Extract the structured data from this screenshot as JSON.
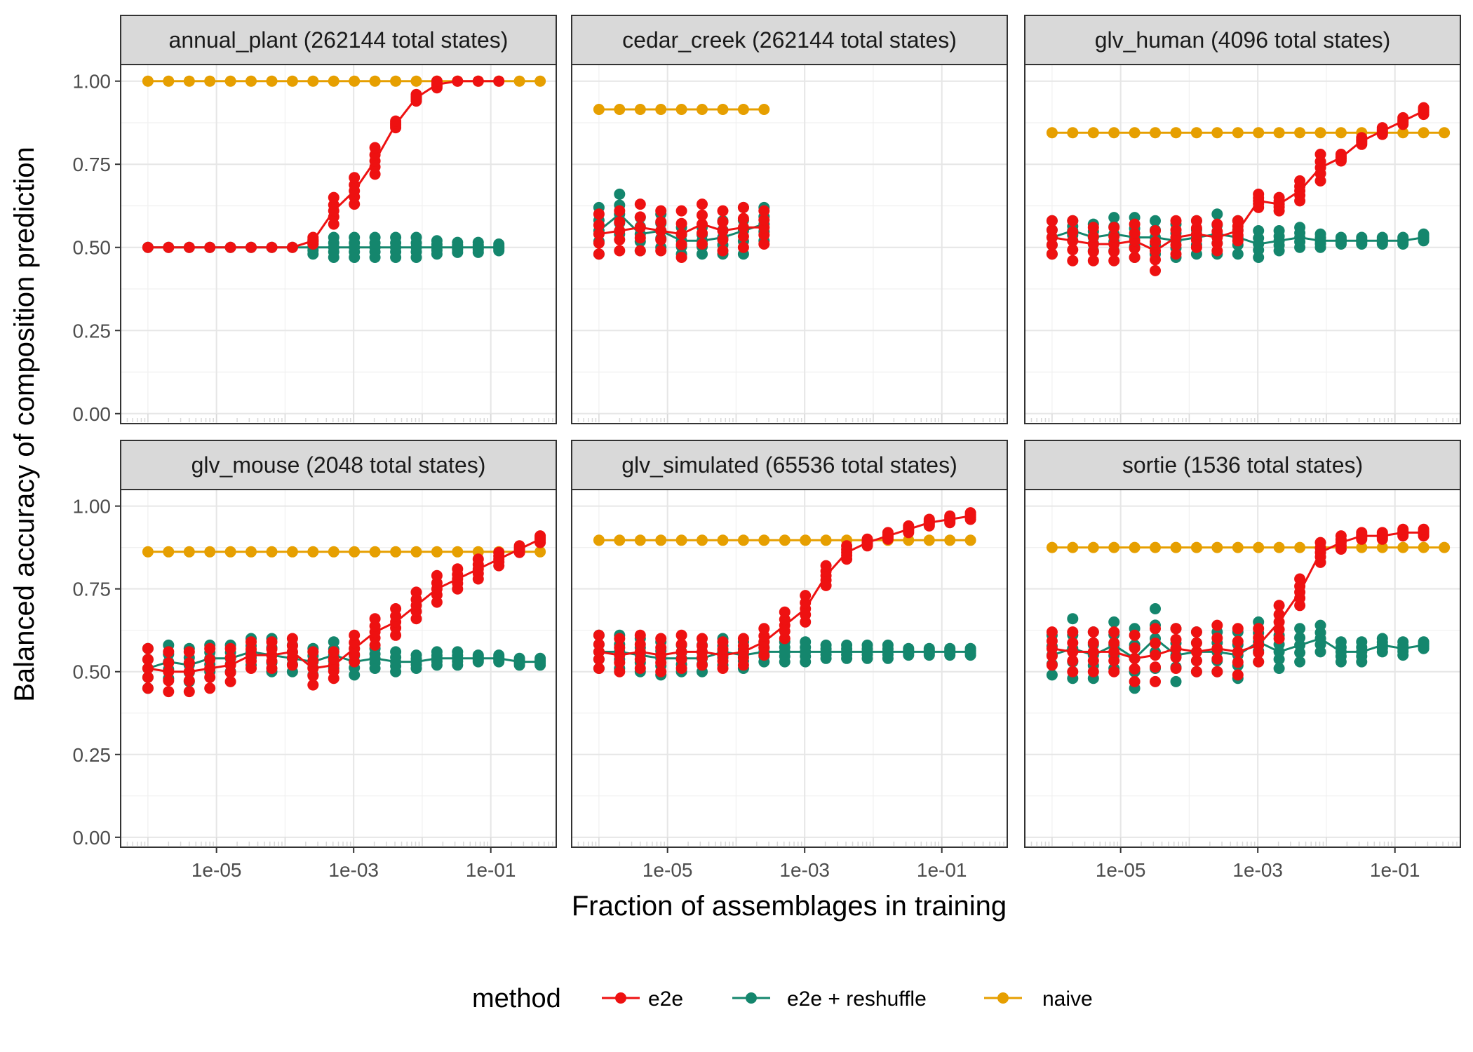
{
  "chart_data": {
    "type": "scatter",
    "xlabel": "Fraction of assemblages in training",
    "ylabel": "Balanced accuracy of composition prediction",
    "x_scale": "log10",
    "xlim": [
      4e-07,
      0.9
    ],
    "ylim": [
      -0.03,
      1.05
    ],
    "x_ticks": [
      1e-05,
      0.001,
      0.1
    ],
    "x_tick_labels": [
      "1e-05",
      "1e-03",
      "1e-01"
    ],
    "y_ticks": [
      0,
      0.25,
      0.5,
      0.75,
      1.0
    ],
    "y_tick_labels": [
      "0.00",
      "0.25",
      "0.50",
      "0.75",
      "1.00"
    ],
    "legend": {
      "title": "method",
      "position": "bottom",
      "entries": [
        {
          "label": "e2e",
          "color": "#ee1111"
        },
        {
          "label": "e2e + reshuffle",
          "color": "#14866d"
        },
        {
          "label": "naive",
          "color": "#e69f00"
        }
      ]
    },
    "x_grid": [
      1e-06,
      2e-06,
      4e-06,
      8e-06,
      1.6e-05,
      3.2e-05,
      6.4e-05,
      0.000128,
      0.000256,
      0.000512,
      0.001024,
      0.002048,
      0.004096,
      0.008192,
      0.016384,
      0.032768,
      0.065536,
      0.131072,
      0.262144,
      0.524288
    ],
    "panels": [
      {
        "title": "annual_plant (262144 total states)",
        "naive": [
          1,
          1,
          1,
          1,
          1,
          1,
          1,
          1,
          1,
          1,
          1,
          1,
          1,
          1,
          1,
          1,
          1,
          1,
          1,
          1
        ],
        "e2e_line": [
          0.5,
          0.5,
          0.5,
          0.5,
          0.5,
          0.5,
          0.5,
          0.5,
          0.52,
          0.61,
          0.67,
          0.76,
          0.87,
          0.95,
          0.99,
          1.0,
          1.0,
          1.0,
          null,
          null
        ],
        "reshuffle_line": [
          0.5,
          0.5,
          0.5,
          0.5,
          0.5,
          0.5,
          0.5,
          0.5,
          0.5,
          0.5,
          0.5,
          0.5,
          0.5,
          0.5,
          0.5,
          0.5,
          0.5,
          0.5,
          null,
          null
        ],
        "e2e_spread": [
          0,
          0,
          0,
          0,
          0,
          0,
          0,
          0,
          0.01,
          0.04,
          0.04,
          0.04,
          0.01,
          0.01,
          0.01,
          0,
          0,
          0,
          0,
          0
        ],
        "reshuffle_spread": [
          0,
          0,
          0,
          0,
          0,
          0,
          0,
          0,
          0.02,
          0.03,
          0.03,
          0.03,
          0.03,
          0.03,
          0.02,
          0.015,
          0.015,
          0.01,
          0,
          0
        ]
      },
      {
        "title": "cedar_creek (262144 total states)",
        "naive": [
          0.915,
          0.915,
          0.915,
          0.915,
          0.915,
          0.915,
          0.915,
          0.915,
          0.915,
          null,
          null,
          null,
          null,
          null,
          null,
          null,
          null,
          null,
          null,
          null
        ],
        "e2e_line": [
          0.54,
          0.55,
          0.56,
          0.55,
          0.54,
          0.57,
          0.55,
          0.56,
          0.56,
          null,
          null,
          null,
          null,
          null,
          null,
          null,
          null,
          null,
          null,
          null
        ],
        "reshuffle_line": [
          0.55,
          0.6,
          0.54,
          0.55,
          0.52,
          0.52,
          0.53,
          0.55,
          0.57,
          null,
          null,
          null,
          null,
          null,
          null,
          null,
          null,
          null,
          null,
          null
        ],
        "e2e_spread": [
          0.06,
          0.06,
          0.07,
          0.06,
          0.07,
          0.06,
          0.06,
          0.06,
          0.05,
          0,
          0,
          0,
          0,
          0,
          0,
          0,
          0,
          0,
          0,
          0
        ],
        "reshuffle_spread": [
          0.07,
          0.06,
          0.05,
          0.05,
          0.04,
          0.04,
          0.05,
          0.07,
          0.05,
          0,
          0,
          0,
          0,
          0,
          0,
          0,
          0,
          0,
          0,
          0
        ]
      },
      {
        "title": "glv_human (4096 total states)",
        "naive": [
          0.845,
          0.845,
          0.845,
          0.845,
          0.845,
          0.845,
          0.845,
          0.845,
          0.845,
          0.845,
          0.845,
          0.845,
          0.845,
          0.845,
          0.845,
          0.845,
          0.845,
          0.845,
          0.845,
          0.845
        ],
        "e2e_line": [
          0.53,
          0.52,
          0.51,
          0.51,
          0.52,
          0.49,
          0.53,
          0.54,
          0.53,
          0.55,
          0.64,
          0.63,
          0.67,
          0.74,
          0.77,
          0.82,
          0.85,
          0.88,
          0.91,
          null
        ],
        "reshuffle_line": [
          0.53,
          0.55,
          0.53,
          0.54,
          0.53,
          0.53,
          0.52,
          0.53,
          0.54,
          0.53,
          0.51,
          0.52,
          0.53,
          0.52,
          0.52,
          0.52,
          0.52,
          0.52,
          0.53,
          null
        ],
        "e2e_spread": [
          0.05,
          0.06,
          0.05,
          0.05,
          0.05,
          0.06,
          0.05,
          0.04,
          0.04,
          0.03,
          0.02,
          0.02,
          0.03,
          0.04,
          0.01,
          0.01,
          0.01,
          0.01,
          0.01,
          0
        ],
        "reshuffle_spread": [
          0.05,
          0.03,
          0.04,
          0.05,
          0.06,
          0.05,
          0.05,
          0.05,
          0.06,
          0.05,
          0.04,
          0.03,
          0.03,
          0.02,
          0.01,
          0.01,
          0.01,
          0.01,
          0.01,
          0
        ]
      },
      {
        "title": "glv_mouse (2048 total states)",
        "naive": [
          0.862,
          0.862,
          0.862,
          0.862,
          0.862,
          0.862,
          0.862,
          0.862,
          0.862,
          0.862,
          0.862,
          0.862,
          0.862,
          0.862,
          0.862,
          0.862,
          0.862,
          0.862,
          0.862,
          0.862
        ],
        "e2e_line": [
          0.51,
          0.5,
          0.5,
          0.51,
          0.52,
          0.55,
          0.55,
          0.56,
          0.51,
          0.52,
          0.57,
          0.62,
          0.65,
          0.7,
          0.75,
          0.78,
          0.81,
          0.84,
          0.87,
          0.9
        ],
        "reshuffle_line": [
          0.51,
          0.53,
          0.52,
          0.54,
          0.54,
          0.56,
          0.55,
          0.54,
          0.53,
          0.55,
          0.53,
          0.54,
          0.53,
          0.53,
          0.54,
          0.54,
          0.54,
          0.54,
          0.53,
          0.53
        ],
        "e2e_spread": [
          0.06,
          0.06,
          0.06,
          0.06,
          0.05,
          0.04,
          0.04,
          0.04,
          0.05,
          0.04,
          0.04,
          0.04,
          0.04,
          0.04,
          0.04,
          0.03,
          0.03,
          0.02,
          0.01,
          0.01
        ],
        "reshuffle_spread": [
          0.06,
          0.05,
          0.05,
          0.04,
          0.04,
          0.04,
          0.05,
          0.04,
          0.04,
          0.04,
          0.04,
          0.03,
          0.03,
          0.02,
          0.02,
          0.02,
          0.01,
          0.01,
          0.01,
          0.01
        ]
      },
      {
        "title": "glv_simulated (65536 total states)",
        "naive": [
          0.897,
          0.897,
          0.897,
          0.897,
          0.897,
          0.897,
          0.897,
          0.897,
          0.897,
          0.897,
          0.897,
          0.897,
          0.897,
          0.897,
          0.897,
          0.897,
          0.897,
          0.897,
          0.897,
          null
        ],
        "e2e_line": [
          0.56,
          0.55,
          0.56,
          0.55,
          0.56,
          0.56,
          0.55,
          0.56,
          0.59,
          0.64,
          0.69,
          0.79,
          0.86,
          0.89,
          0.91,
          0.93,
          0.95,
          0.96,
          0.97,
          null
        ],
        "reshuffle_line": [
          0.56,
          0.56,
          0.55,
          0.54,
          0.54,
          0.54,
          0.56,
          0.55,
          0.56,
          0.56,
          0.56,
          0.56,
          0.56,
          0.56,
          0.56,
          0.56,
          0.56,
          0.56,
          0.56,
          null
        ],
        "e2e_spread": [
          0.05,
          0.05,
          0.05,
          0.05,
          0.05,
          0.04,
          0.04,
          0.04,
          0.04,
          0.04,
          0.04,
          0.03,
          0.02,
          0.01,
          0.01,
          0.01,
          0.01,
          0.01,
          0.01,
          0
        ],
        "reshuffle_spread": [
          0.05,
          0.05,
          0.05,
          0.05,
          0.04,
          0.04,
          0.04,
          0.04,
          0.03,
          0.03,
          0.03,
          0.02,
          0.02,
          0.02,
          0.02,
          0.01,
          0.01,
          0.01,
          0.01,
          0
        ]
      },
      {
        "title": "sortie (1536 total states)",
        "naive": [
          0.875,
          0.875,
          0.875,
          0.875,
          0.875,
          0.875,
          0.875,
          0.875,
          0.875,
          0.875,
          0.875,
          0.875,
          0.875,
          0.875,
          0.875,
          0.875,
          0.875,
          0.875,
          0.875,
          0.875
        ],
        "e2e_line": [
          0.57,
          0.56,
          0.56,
          0.56,
          0.54,
          0.55,
          0.57,
          0.56,
          0.57,
          0.56,
          0.58,
          0.65,
          0.74,
          0.86,
          0.89,
          0.91,
          0.91,
          0.92,
          0.92,
          null
        ],
        "reshuffle_line": [
          0.55,
          0.57,
          0.55,
          0.58,
          0.54,
          0.6,
          0.55,
          0.56,
          0.56,
          0.55,
          0.59,
          0.56,
          0.58,
          0.6,
          0.56,
          0.56,
          0.58,
          0.57,
          0.58,
          null
        ],
        "e2e_spread": [
          0.05,
          0.06,
          0.06,
          0.06,
          0.07,
          0.08,
          0.06,
          0.06,
          0.07,
          0.07,
          0.05,
          0.05,
          0.04,
          0.03,
          0.02,
          0.01,
          0.01,
          0.01,
          0.01,
          0
        ],
        "reshuffle_spread": [
          0.06,
          0.09,
          0.07,
          0.07,
          0.09,
          0.09,
          0.08,
          0.06,
          0.06,
          0.07,
          0.06,
          0.05,
          0.05,
          0.04,
          0.03,
          0.03,
          0.02,
          0.02,
          0.01,
          0
        ]
      }
    ]
  }
}
